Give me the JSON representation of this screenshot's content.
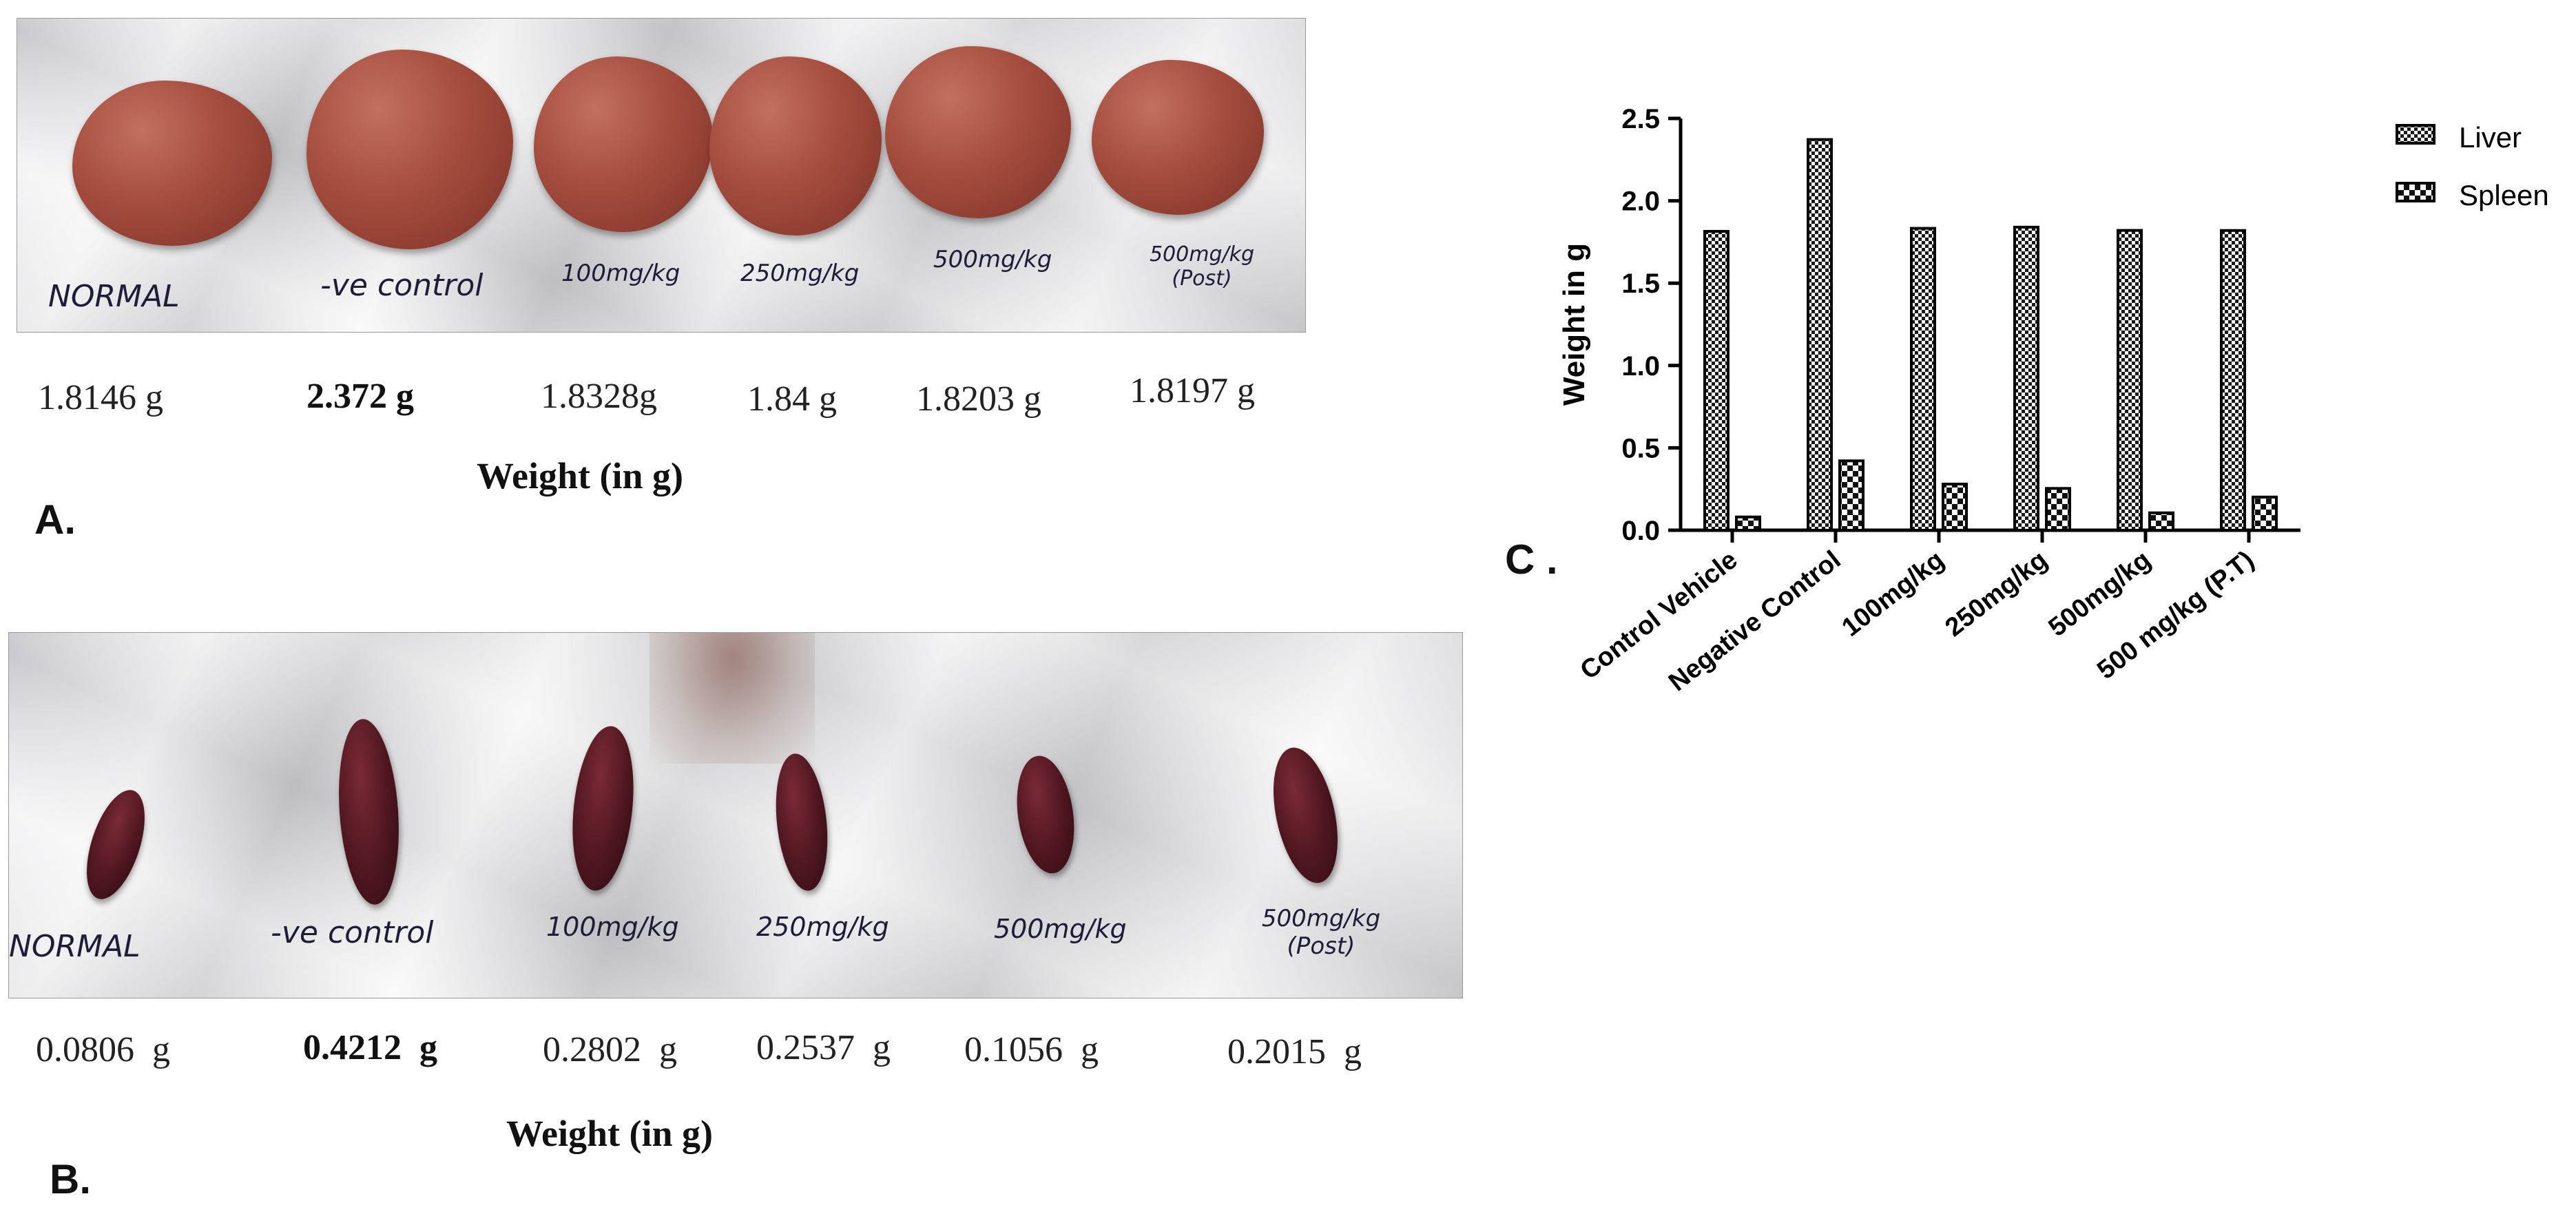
{
  "panel_a": {
    "letter": "A.",
    "labels": [
      "NORMAL",
      "-ve control",
      "100mg/kg",
      "250mg/kg",
      "500mg/kg",
      "500mg/kg (Post)"
    ],
    "weights": [
      "1.8146 g",
      "2.372 g",
      "1.8328g",
      "1.84 g",
      "1.8203 g",
      "1.8197 g"
    ],
    "caption": "Weight (in g)"
  },
  "panel_b": {
    "letter": "B.",
    "labels": [
      "NORMAL",
      "-ve control",
      "100mg/kg",
      "250mg/kg",
      "500mg/kg",
      "500mg/kg (Post)"
    ],
    "weights": [
      "0.0806  g",
      "0.4212  g",
      "0.2802  g",
      "0.2537  g",
      "0.1056  g",
      "0.2015  g"
    ],
    "caption": "Weight (in g)"
  },
  "panel_c": {
    "letter": "C ."
  },
  "chart_data": {
    "type": "bar",
    "categories": [
      "Control Vehicle",
      "Negative Control",
      "100mg/kg",
      "250mg/kg",
      "500mg/kg",
      "500 mg/kg (P.T)"
    ],
    "series": [
      {
        "name": "Liver",
        "values": [
          1.8146,
          2.372,
          1.8328,
          1.84,
          1.8203,
          1.8197
        ]
      },
      {
        "name": "Spleen",
        "values": [
          0.0806,
          0.4212,
          0.2802,
          0.2537,
          0.1056,
          0.2015
        ]
      }
    ],
    "ylabel": "Weight in g",
    "xlabel": "",
    "ylim": [
      0,
      2.5
    ],
    "yticks": [
      "0.0",
      "0.5",
      "1.0",
      "1.5",
      "2.0",
      "2.5"
    ],
    "legend_position": "top-right",
    "grid": false
  }
}
